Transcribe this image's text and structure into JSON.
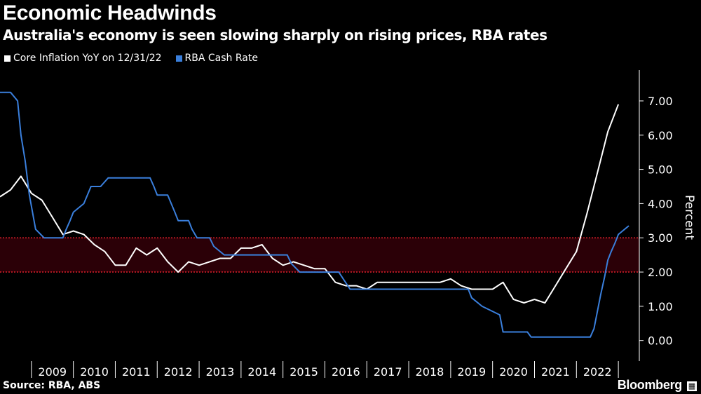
{
  "chart_data": {
    "type": "line",
    "title": "Economic Headwinds",
    "subtitle": "Australia's economy is seen slowing sharply on rising prices, RBA rates",
    "ylabel": "Percent",
    "ylim": [
      -0.6,
      7.9
    ],
    "yticks": [
      "0.00",
      "1.00",
      "2.00",
      "3.00",
      "4.00",
      "5.00",
      "6.00",
      "7.00"
    ],
    "xticks": [
      "2009",
      "2010",
      "2011",
      "2012",
      "2013",
      "2014",
      "2015",
      "2016",
      "2017",
      "2018",
      "2019",
      "2020",
      "2021",
      "2022"
    ],
    "xlim": [
      2008.25,
      2023.5
    ],
    "target_band": [
      2,
      3
    ],
    "legend_position": "top-left",
    "series": [
      {
        "name": "Core Inflation YoY on 12/31/22",
        "color": "#ffffff",
        "points": [
          [
            2008.25,
            4.2
          ],
          [
            2008.5,
            4.4
          ],
          [
            2008.75,
            4.8
          ],
          [
            2009.0,
            4.3
          ],
          [
            2009.25,
            4.1
          ],
          [
            2009.5,
            3.6
          ],
          [
            2009.75,
            3.1
          ],
          [
            2010.0,
            3.2
          ],
          [
            2010.25,
            3.1
          ],
          [
            2010.5,
            2.8
          ],
          [
            2010.75,
            2.6
          ],
          [
            2011.0,
            2.2
          ],
          [
            2011.25,
            2.2
          ],
          [
            2011.5,
            2.7
          ],
          [
            2011.75,
            2.5
          ],
          [
            2012.0,
            2.7
          ],
          [
            2012.25,
            2.3
          ],
          [
            2012.5,
            2.0
          ],
          [
            2012.75,
            2.3
          ],
          [
            2013.0,
            2.2
          ],
          [
            2013.25,
            2.3
          ],
          [
            2013.5,
            2.4
          ],
          [
            2013.75,
            2.4
          ],
          [
            2014.0,
            2.7
          ],
          [
            2014.25,
            2.7
          ],
          [
            2014.5,
            2.8
          ],
          [
            2014.75,
            2.4
          ],
          [
            2015.0,
            2.2
          ],
          [
            2015.25,
            2.3
          ],
          [
            2015.5,
            2.2
          ],
          [
            2015.75,
            2.1
          ],
          [
            2016.0,
            2.1
          ],
          [
            2016.25,
            1.7
          ],
          [
            2016.5,
            1.6
          ],
          [
            2016.75,
            1.6
          ],
          [
            2017.0,
            1.5
          ],
          [
            2017.25,
            1.7
          ],
          [
            2017.5,
            1.7
          ],
          [
            2017.75,
            1.7
          ],
          [
            2018.0,
            1.7
          ],
          [
            2018.25,
            1.7
          ],
          [
            2018.5,
            1.7
          ],
          [
            2018.75,
            1.7
          ],
          [
            2019.0,
            1.8
          ],
          [
            2019.25,
            1.6
          ],
          [
            2019.5,
            1.5
          ],
          [
            2019.75,
            1.5
          ],
          [
            2020.0,
            1.5
          ],
          [
            2020.25,
            1.7
          ],
          [
            2020.5,
            1.2
          ],
          [
            2020.75,
            1.1
          ],
          [
            2021.0,
            1.2
          ],
          [
            2021.25,
            1.1
          ],
          [
            2021.5,
            1.6
          ],
          [
            2021.75,
            2.1
          ],
          [
            2022.0,
            2.6
          ],
          [
            2022.25,
            3.7
          ],
          [
            2022.5,
            4.9
          ],
          [
            2022.75,
            6.1
          ],
          [
            2023.0,
            6.9
          ]
        ]
      },
      {
        "name": "RBA Cash Rate",
        "color": "#3a7fdc",
        "points": [
          [
            2008.25,
            7.25
          ],
          [
            2008.5,
            7.25
          ],
          [
            2008.67,
            7.0
          ],
          [
            2008.75,
            6.0
          ],
          [
            2008.85,
            5.25
          ],
          [
            2008.95,
            4.25
          ],
          [
            2009.1,
            3.25
          ],
          [
            2009.3,
            3.0
          ],
          [
            2009.75,
            3.0
          ],
          [
            2009.83,
            3.25
          ],
          [
            2009.92,
            3.5
          ],
          [
            2010.0,
            3.75
          ],
          [
            2010.25,
            4.0
          ],
          [
            2010.42,
            4.5
          ],
          [
            2010.65,
            4.5
          ],
          [
            2010.83,
            4.75
          ],
          [
            2011.83,
            4.75
          ],
          [
            2011.92,
            4.5
          ],
          [
            2012.0,
            4.25
          ],
          [
            2012.25,
            4.25
          ],
          [
            2012.42,
            3.75
          ],
          [
            2012.5,
            3.5
          ],
          [
            2012.75,
            3.5
          ],
          [
            2012.83,
            3.25
          ],
          [
            2012.95,
            3.0
          ],
          [
            2013.25,
            3.0
          ],
          [
            2013.35,
            2.75
          ],
          [
            2013.6,
            2.5
          ],
          [
            2015.1,
            2.5
          ],
          [
            2015.2,
            2.25
          ],
          [
            2015.4,
            2.0
          ],
          [
            2016.33,
            2.0
          ],
          [
            2016.6,
            1.5
          ],
          [
            2019.42,
            1.5
          ],
          [
            2019.5,
            1.25
          ],
          [
            2019.75,
            1.0
          ],
          [
            2020.17,
            0.75
          ],
          [
            2020.25,
            0.25
          ],
          [
            2020.83,
            0.25
          ],
          [
            2020.92,
            0.1
          ],
          [
            2022.33,
            0.1
          ],
          [
            2022.42,
            0.35
          ],
          [
            2022.5,
            0.85
          ],
          [
            2022.58,
            1.35
          ],
          [
            2022.67,
            1.85
          ],
          [
            2022.75,
            2.35
          ],
          [
            2022.83,
            2.6
          ],
          [
            2022.92,
            2.85
          ],
          [
            2023.0,
            3.1
          ],
          [
            2023.25,
            3.35
          ]
        ]
      }
    ]
  },
  "source": "Source: RBA, ABS",
  "brand": "Bloomberg",
  "colors": {
    "band_fill": "#2b0007",
    "band_line": "#e0202a",
    "axis": "#ffffff"
  }
}
